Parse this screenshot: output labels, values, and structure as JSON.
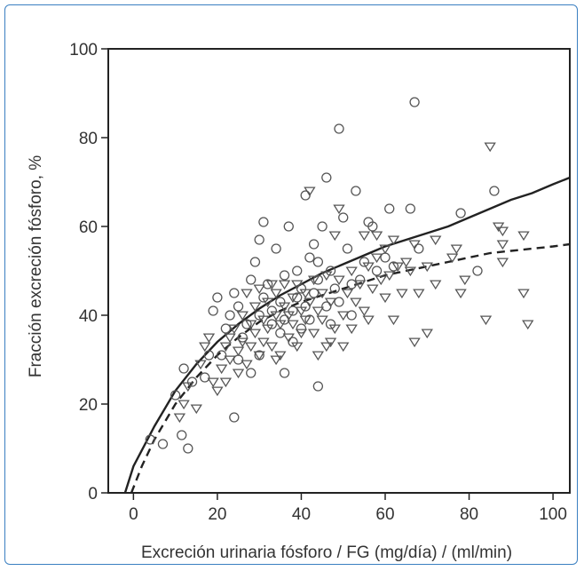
{
  "chart_data": {
    "type": "scatter",
    "title": "",
    "xlabel": "Excreción urinaria fósforo / FG (mg/día) / (ml/min)",
    "ylabel": "Fracción excreción fósforo, %",
    "xlim": [
      -6,
      104
    ],
    "ylim": [
      0,
      100
    ],
    "x_ticks": [
      0,
      20,
      40,
      60,
      80,
      100
    ],
    "y_ticks": [
      0,
      20,
      40,
      60,
      80,
      100
    ],
    "x_tick_labels": [
      "0",
      "20",
      "40",
      "60",
      "80",
      "100"
    ],
    "y_tick_labels": [
      "0",
      "20",
      "40",
      "60",
      "80",
      "100"
    ],
    "grid": false,
    "legend": "none",
    "series": [
      {
        "marker": "circle",
        "color": "#555555",
        "points": [
          [
            4,
            12
          ],
          [
            7,
            11
          ],
          [
            10,
            22
          ],
          [
            11.5,
            13
          ],
          [
            12,
            28
          ],
          [
            13,
            10
          ],
          [
            14,
            25
          ],
          [
            17,
            26
          ],
          [
            18,
            31
          ],
          [
            19,
            41
          ],
          [
            20,
            44
          ],
          [
            21,
            31
          ],
          [
            22,
            37
          ],
          [
            23,
            40
          ],
          [
            24,
            45
          ],
          [
            25,
            42
          ],
          [
            24,
            17
          ],
          [
            26,
            35
          ],
          [
            27,
            38
          ],
          [
            28,
            48
          ],
          [
            28,
            27
          ],
          [
            29,
            52
          ],
          [
            30,
            57
          ],
          [
            30,
            31
          ],
          [
            31,
            44
          ],
          [
            31,
            61
          ],
          [
            32,
            47
          ],
          [
            33,
            41
          ],
          [
            33,
            38
          ],
          [
            34,
            55
          ],
          [
            35,
            36
          ],
          [
            35,
            43
          ],
          [
            36,
            49
          ],
          [
            36,
            27
          ],
          [
            37,
            60
          ],
          [
            38,
            41
          ],
          [
            38,
            34
          ],
          [
            39,
            44
          ],
          [
            39,
            50
          ],
          [
            40,
            37
          ],
          [
            40,
            46
          ],
          [
            41,
            42
          ],
          [
            41,
            67
          ],
          [
            42,
            53
          ],
          [
            42,
            39
          ],
          [
            43,
            56
          ],
          [
            43,
            45
          ],
          [
            44,
            24
          ],
          [
            44,
            48
          ],
          [
            45,
            60
          ],
          [
            46,
            42
          ],
          [
            46,
            71
          ],
          [
            47,
            50
          ],
          [
            47,
            38
          ],
          [
            48,
            46
          ],
          [
            49,
            82
          ],
          [
            49,
            43
          ],
          [
            50,
            62
          ],
          [
            51,
            55
          ],
          [
            52,
            40
          ],
          [
            53,
            68
          ],
          [
            54,
            48
          ],
          [
            55,
            52
          ],
          [
            56,
            61
          ],
          [
            57,
            60
          ],
          [
            58,
            50
          ],
          [
            60,
            53
          ],
          [
            61,
            64
          ],
          [
            62,
            51
          ],
          [
            66,
            64
          ],
          [
            67,
            88
          ],
          [
            68,
            55
          ],
          [
            78,
            63
          ],
          [
            82,
            50
          ],
          [
            86,
            68
          ],
          [
            25,
            30
          ],
          [
            30,
            40
          ],
          [
            36,
            39
          ],
          [
            44,
            52
          ],
          [
            52,
            47
          ]
        ]
      },
      {
        "marker": "triangle-down",
        "color": "#555555",
        "points": [
          [
            11,
            17
          ],
          [
            12,
            20
          ],
          [
            13,
            24
          ],
          [
            15,
            19
          ],
          [
            16,
            29
          ],
          [
            17,
            33
          ],
          [
            18,
            35
          ],
          [
            19,
            25
          ],
          [
            20,
            23
          ],
          [
            21,
            28
          ],
          [
            22,
            25
          ],
          [
            22,
            33
          ],
          [
            23,
            30
          ],
          [
            23,
            35
          ],
          [
            24,
            37
          ],
          [
            25,
            32
          ],
          [
            25,
            27
          ],
          [
            26,
            40
          ],
          [
            26,
            34
          ],
          [
            27,
            29
          ],
          [
            27,
            45
          ],
          [
            28,
            38
          ],
          [
            28,
            33
          ],
          [
            29,
            42
          ],
          [
            29,
            36
          ],
          [
            30,
            46
          ],
          [
            30,
            31
          ],
          [
            31,
            39
          ],
          [
            31,
            34
          ],
          [
            32,
            43
          ],
          [
            32,
            37
          ],
          [
            33,
            47
          ],
          [
            33,
            33
          ],
          [
            34,
            40
          ],
          [
            34,
            45
          ],
          [
            35,
            38
          ],
          [
            35,
            31
          ],
          [
            36,
            42
          ],
          [
            36,
            47
          ],
          [
            37,
            35
          ],
          [
            37,
            40
          ],
          [
            38,
            44
          ],
          [
            38,
            38
          ],
          [
            39,
            33
          ],
          [
            39,
            47
          ],
          [
            40,
            41
          ],
          [
            40,
            36
          ],
          [
            41,
            45
          ],
          [
            41,
            39
          ],
          [
            42,
            43
          ],
          [
            42,
            68
          ],
          [
            43,
            36
          ],
          [
            43,
            48
          ],
          [
            44,
            41
          ],
          [
            44,
            31
          ],
          [
            45,
            45
          ],
          [
            45,
            39
          ],
          [
            46,
            33
          ],
          [
            46,
            49
          ],
          [
            47,
            43
          ],
          [
            48,
            37
          ],
          [
            48,
            58
          ],
          [
            49,
            48
          ],
          [
            49,
            64
          ],
          [
            50,
            40
          ],
          [
            50,
            33
          ],
          [
            51,
            45
          ],
          [
            52,
            50
          ],
          [
            52,
            37
          ],
          [
            53,
            43
          ],
          [
            54,
            47
          ],
          [
            55,
            58
          ],
          [
            55,
            41
          ],
          [
            56,
            51
          ],
          [
            56,
            39
          ],
          [
            57,
            46
          ],
          [
            58,
            53
          ],
          [
            59,
            48
          ],
          [
            60,
            55
          ],
          [
            60,
            44
          ],
          [
            61,
            49
          ],
          [
            62,
            57
          ],
          [
            62,
            39
          ],
          [
            63,
            51
          ],
          [
            64,
            45
          ],
          [
            65,
            52
          ],
          [
            66,
            50
          ],
          [
            67,
            56
          ],
          [
            67,
            34
          ],
          [
            68,
            45
          ],
          [
            70,
            51
          ],
          [
            70,
            36
          ],
          [
            72,
            47
          ],
          [
            72,
            57
          ],
          [
            76,
            53
          ],
          [
            77,
            55
          ],
          [
            78,
            45
          ],
          [
            79,
            48
          ],
          [
            84,
            39
          ],
          [
            85,
            78
          ],
          [
            87,
            60
          ],
          [
            88,
            52
          ],
          [
            88,
            56
          ],
          [
            88,
            59
          ],
          [
            93,
            58
          ],
          [
            93,
            45
          ],
          [
            94,
            38
          ],
          [
            34,
            30
          ],
          [
            47,
            34
          ],
          [
            58,
            58
          ]
        ]
      }
    ],
    "curves": [
      {
        "style": "solid",
        "color": "#222222",
        "points": [
          [
            -2,
            0
          ],
          [
            0,
            6
          ],
          [
            5,
            15
          ],
          [
            10,
            23
          ],
          [
            15,
            29
          ],
          [
            20,
            34
          ],
          [
            25,
            38
          ],
          [
            30,
            41.5
          ],
          [
            35,
            44.5
          ],
          [
            40,
            47
          ],
          [
            45,
            49.5
          ],
          [
            50,
            51.5
          ],
          [
            55,
            53.5
          ],
          [
            60,
            55.5
          ],
          [
            65,
            57
          ],
          [
            70,
            58.5
          ],
          [
            75,
            60
          ],
          [
            80,
            62
          ],
          [
            85,
            64
          ],
          [
            90,
            66
          ],
          [
            95,
            67.5
          ],
          [
            100,
            69.5
          ],
          [
            104,
            71
          ]
        ]
      },
      {
        "style": "dashed",
        "color": "#222222",
        "points": [
          [
            -0.5,
            0
          ],
          [
            2,
            6
          ],
          [
            5,
            12
          ],
          [
            10,
            20
          ],
          [
            15,
            26
          ],
          [
            20,
            31
          ],
          [
            25,
            35
          ],
          [
            30,
            38.5
          ],
          [
            35,
            41
          ],
          [
            40,
            43
          ],
          [
            45,
            44.5
          ],
          [
            50,
            46
          ],
          [
            55,
            47.5
          ],
          [
            60,
            49
          ],
          [
            65,
            50
          ],
          [
            70,
            51
          ],
          [
            75,
            52
          ],
          [
            80,
            53
          ],
          [
            85,
            54
          ],
          [
            90,
            54.5
          ],
          [
            95,
            55
          ],
          [
            100,
            55.5
          ],
          [
            104,
            56
          ]
        ]
      }
    ]
  }
}
